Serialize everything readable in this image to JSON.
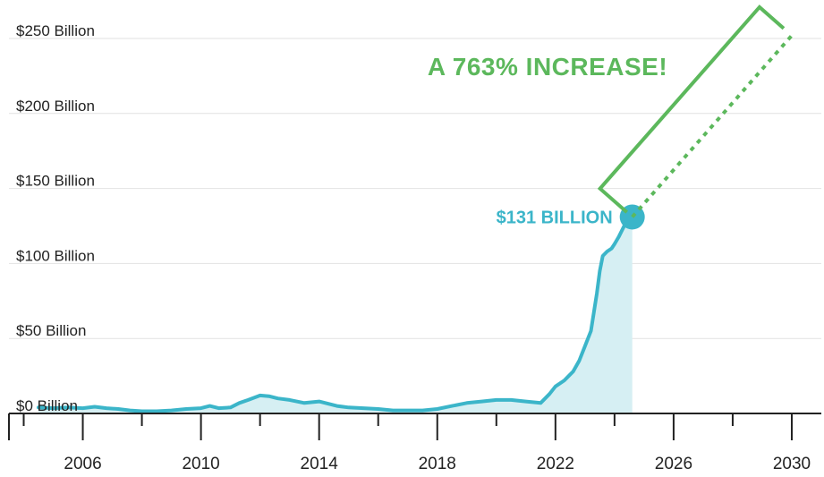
{
  "chart_data": {
    "type": "area",
    "title": "",
    "xlabel": "",
    "ylabel": "",
    "xlim": [
      2003.5,
      2031.0
    ],
    "ylim": [
      0,
      250
    ],
    "grid": true,
    "legend": "none",
    "y_ticks": [
      {
        "value": 0,
        "label": "$0 Billion"
      },
      {
        "value": 50,
        "label": "$50 Billion"
      },
      {
        "value": 100,
        "label": "$100 Billion"
      },
      {
        "value": 150,
        "label": "$150 Billion"
      },
      {
        "value": 200,
        "label": "$200 Billion"
      },
      {
        "value": 250,
        "label": "$250 Billion"
      }
    ],
    "x_ticks": [
      {
        "value": 2006,
        "label": "2006"
      },
      {
        "value": 2010,
        "label": "2010"
      },
      {
        "value": 2014,
        "label": "2014"
      },
      {
        "value": 2018,
        "label": "2018"
      },
      {
        "value": 2022,
        "label": "2022"
      },
      {
        "value": 2026,
        "label": "2026"
      },
      {
        "value": 2030,
        "label": "2030"
      }
    ],
    "x_minor_ticks": [
      2004,
      2008,
      2012,
      2016,
      2020,
      2024,
      2028
    ],
    "series": [
      {
        "color": "#3bb5c9",
        "fill": "#d6eff3",
        "points": [
          [
            2004.5,
            4
          ],
          [
            2005.0,
            3.5
          ],
          [
            2005.5,
            4
          ],
          [
            2006.0,
            3.5
          ],
          [
            2006.4,
            4.5
          ],
          [
            2006.8,
            3.5
          ],
          [
            2007.2,
            3
          ],
          [
            2007.6,
            2
          ],
          [
            2008.0,
            1.5
          ],
          [
            2008.5,
            1.5
          ],
          [
            2009.0,
            2
          ],
          [
            2009.5,
            3
          ],
          [
            2010.0,
            3.5
          ],
          [
            2010.3,
            5
          ],
          [
            2010.6,
            3.5
          ],
          [
            2011.0,
            4
          ],
          [
            2011.3,
            7
          ],
          [
            2011.6,
            9
          ],
          [
            2012.0,
            12
          ],
          [
            2012.3,
            11.5
          ],
          [
            2012.6,
            10
          ],
          [
            2013.0,
            9
          ],
          [
            2013.5,
            7
          ],
          [
            2014.0,
            8
          ],
          [
            2014.3,
            6.5
          ],
          [
            2014.6,
            5
          ],
          [
            2015.0,
            4
          ],
          [
            2015.5,
            3.5
          ],
          [
            2016.0,
            3
          ],
          [
            2016.5,
            2
          ],
          [
            2017.0,
            2
          ],
          [
            2017.5,
            2
          ],
          [
            2018.0,
            3
          ],
          [
            2018.5,
            5
          ],
          [
            2019.0,
            7
          ],
          [
            2019.5,
            8
          ],
          [
            2020.0,
            9
          ],
          [
            2020.5,
            9
          ],
          [
            2021.0,
            8
          ],
          [
            2021.5,
            7
          ],
          [
            2021.8,
            13
          ],
          [
            2022.0,
            18
          ],
          [
            2022.3,
            22
          ],
          [
            2022.6,
            28
          ],
          [
            2022.8,
            35
          ],
          [
            2023.0,
            45
          ],
          [
            2023.2,
            55
          ],
          [
            2023.4,
            80
          ],
          [
            2023.5,
            95
          ],
          [
            2023.6,
            105
          ],
          [
            2023.75,
            108
          ],
          [
            2023.9,
            110
          ],
          [
            2024.0,
            113
          ],
          [
            2024.15,
            118
          ],
          [
            2024.3,
            124
          ],
          [
            2024.4,
            128
          ],
          [
            2024.6,
            131
          ]
        ]
      }
    ],
    "projection": {
      "style": "dotted",
      "color": "#5cb85c",
      "points": [
        [
          2024.6,
          131
        ],
        [
          2030.0,
          252
        ]
      ]
    },
    "highlight_point": {
      "x": 2024.6,
      "y": 131,
      "label": "$131 BILLION",
      "color": "#3bb5c9"
    },
    "increase_annotation": {
      "text": "A 763% INCREASE!",
      "color": "#5cb85c"
    }
  }
}
